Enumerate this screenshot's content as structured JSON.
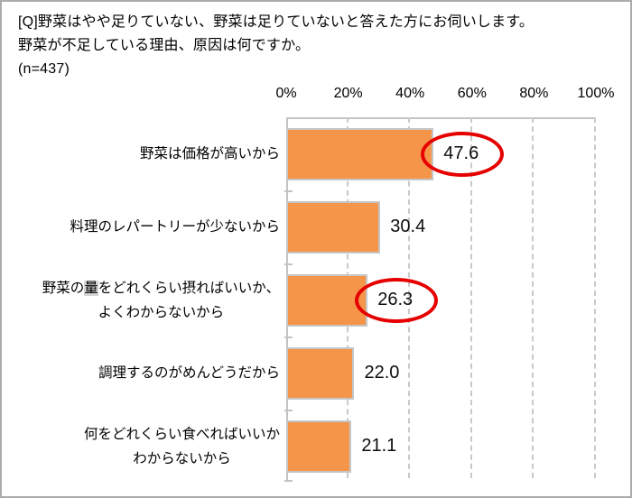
{
  "header": {
    "question_line1": "[Q]野菜はやや足りていない、野菜は足りていないと答えた方にお伺いします。",
    "question_line2": "野菜が不足している理由、原因は何ですか。",
    "sample_size": "(n=437)"
  },
  "chart_data": {
    "type": "bar",
    "orientation": "horizontal",
    "title": "",
    "xlabel": "",
    "ylabel": "",
    "xlim": [
      0,
      100
    ],
    "x_tick_labels": [
      "0%",
      "20%",
      "40%",
      "60%",
      "80%",
      "100%"
    ],
    "grid": "dashed-vertical",
    "legend": "none",
    "categories": [
      "野菜は価格が高いから",
      "料理のレパートリーが少ないから",
      "野菜の量をどれくらい摂ればいいか、よくわからないから",
      "調理するのがめんどうだから",
      "何をどれくらい食べればいいかわからないから"
    ],
    "category_lines": [
      [
        "野菜は価格が高いから"
      ],
      [
        "料理のレパートリーが少ないから"
      ],
      [
        "野菜の量をどれくらい摂ればいいか、",
        "よくわからないから"
      ],
      [
        "調理するのがめんどうだから"
      ],
      [
        "何をどれくらい食べればいいか",
        "わからないから"
      ]
    ],
    "values": [
      47.6,
      30.4,
      26.3,
      22.0,
      21.1
    ],
    "value_labels": [
      "47.6",
      "30.4",
      "26.3",
      "22.0",
      "21.1"
    ],
    "circled_indices": [
      0,
      2
    ],
    "highlight": {
      "category_index": 2,
      "char": "量"
    },
    "colors": {
      "bar_fill": "#f4954a",
      "bar_border": "#c6c6c6",
      "axis_line": "#c3c3c3",
      "gridline": "#c9c9c9",
      "circle_stroke": "#e60000",
      "text": "#000000"
    }
  }
}
